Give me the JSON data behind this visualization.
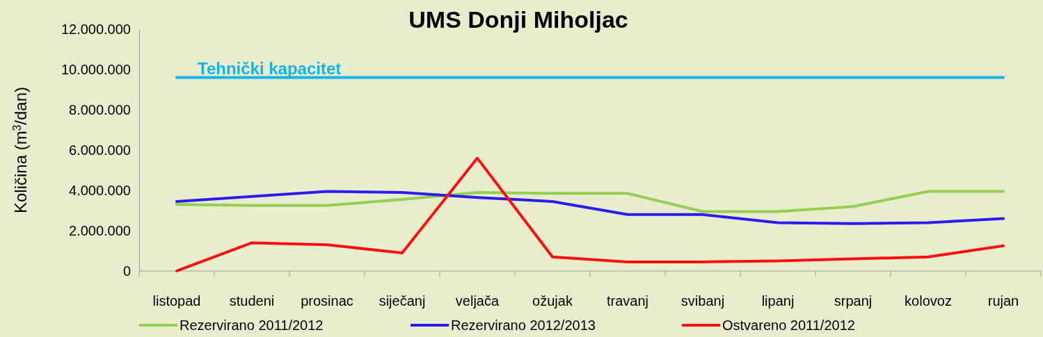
{
  "chart_data": {
    "type": "line",
    "title": "UMS Donji Miholjac",
    "ylabel": "Količina (m$^{3}$/dan)",
    "categories": [
      "listopad",
      "studeni",
      "prosinac",
      "siječanj",
      "veljača",
      "ožujak",
      "travanj",
      "svibanj",
      "lipanj",
      "srpanj",
      "kolovoz",
      "rujan"
    ],
    "series": [
      {
        "name": "Rezervirano 2011/2012",
        "color": "#8fd14f",
        "values": [
          3300000,
          3250000,
          3250000,
          3550000,
          3900000,
          3850000,
          3850000,
          2950000,
          2950000,
          3200000,
          3950000,
          3950000
        ]
      },
      {
        "name": "Rezervirano 2012/2013",
        "color": "#2a1cf0",
        "values": [
          3450000,
          3700000,
          3950000,
          3900000,
          3650000,
          3450000,
          2800000,
          2800000,
          2400000,
          2350000,
          2400000,
          2600000
        ]
      },
      {
        "name": "Ostvareno 2011/2012",
        "color": "#ff1010",
        "values": [
          0,
          1400000,
          1300000,
          900000,
          5600000,
          700000,
          450000,
          450000,
          500000,
          600000,
          700000,
          1250000
        ]
      }
    ],
    "ylim": [
      0,
      12000000
    ],
    "yticks": [
      {
        "value": 0,
        "label": "0"
      },
      {
        "value": 2000000,
        "label": "2.000.000"
      },
      {
        "value": 4000000,
        "label": "4.000.000"
      },
      {
        "value": 6000000,
        "label": "6.000.000"
      },
      {
        "value": 8000000,
        "label": "8.000.000"
      },
      {
        "value": 10000000,
        "label": "10.000.000"
      },
      {
        "value": 12000000,
        "label": "12.000.000"
      }
    ],
    "ref_lines": [
      {
        "axis": "y",
        "value": 9600000,
        "label": "Tehnički kapacitet",
        "color": "#12b4e8"
      }
    ],
    "grid": false,
    "legend": "bottom",
    "marker": "none",
    "line_style": "solid"
  }
}
